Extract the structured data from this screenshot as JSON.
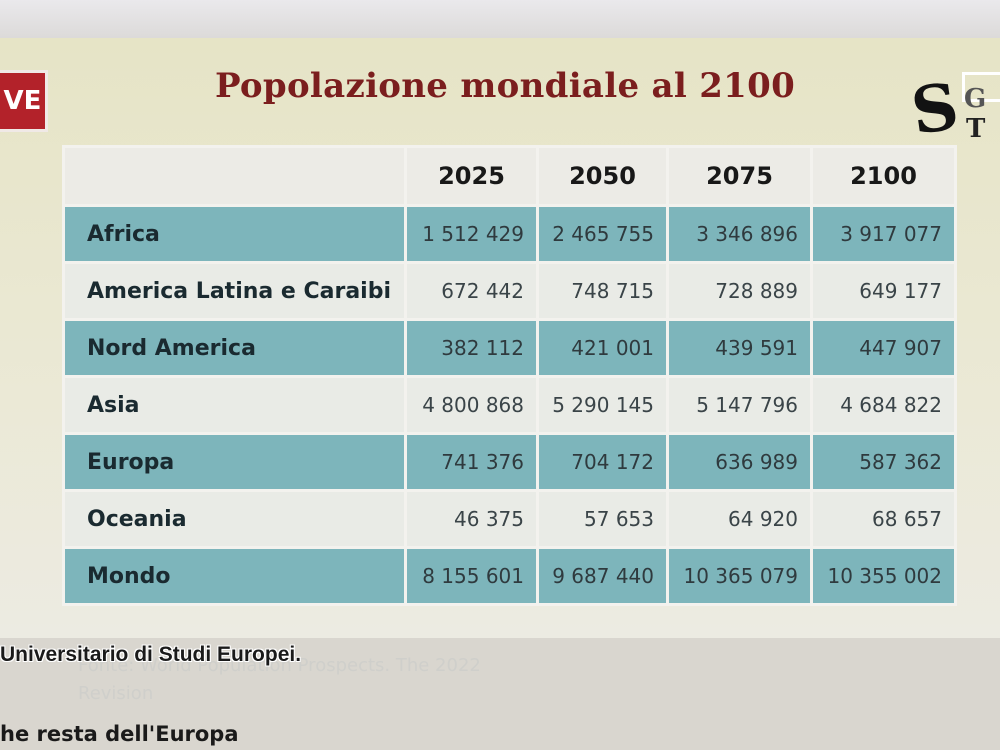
{
  "badge": {
    "text": "VE"
  },
  "title": "Popolazione mondiale al 2100",
  "table": {
    "columns": [
      "2025",
      "2050",
      "2075",
      "2100"
    ],
    "rows": [
      {
        "name": "Africa",
        "values": [
          "1 512 429",
          "2 465 755",
          "3 346 896",
          "3 917 077"
        ]
      },
      {
        "name": "America Latina e Caraibi",
        "values": [
          "672 442",
          "748 715",
          "728 889",
          "649 177"
        ]
      },
      {
        "name": "Nord America",
        "values": [
          "382 112",
          "421 001",
          "439 591",
          "447 907"
        ]
      },
      {
        "name": "Asia",
        "values": [
          "4 800 868",
          "5 290 145",
          "5 147 796",
          "4 684 822"
        ]
      },
      {
        "name": "Europa",
        "values": [
          "741 376",
          "704 172",
          "636 989",
          "587 362"
        ]
      },
      {
        "name": "Oceania",
        "values": [
          "46 375",
          "57 653",
          "64 920",
          "68 657"
        ]
      },
      {
        "name": "Mondo",
        "values": [
          "8 155 601",
          "9 687 440",
          "10 365 079",
          "10 355 002"
        ]
      }
    ]
  },
  "source": {
    "line1": "Fonte: World Population Prospects. The 2022",
    "line2": "Revision"
  },
  "overlay": {
    "institute": "Universitario di Studi Europei.",
    "caption": "he resta dell'Europa"
  },
  "logo": {
    "letters": [
      "S",
      "G",
      "T"
    ]
  },
  "colors": {
    "title": "#7b1e1e",
    "shaded_row": "#7db5bb",
    "badge": "#b3222a"
  }
}
